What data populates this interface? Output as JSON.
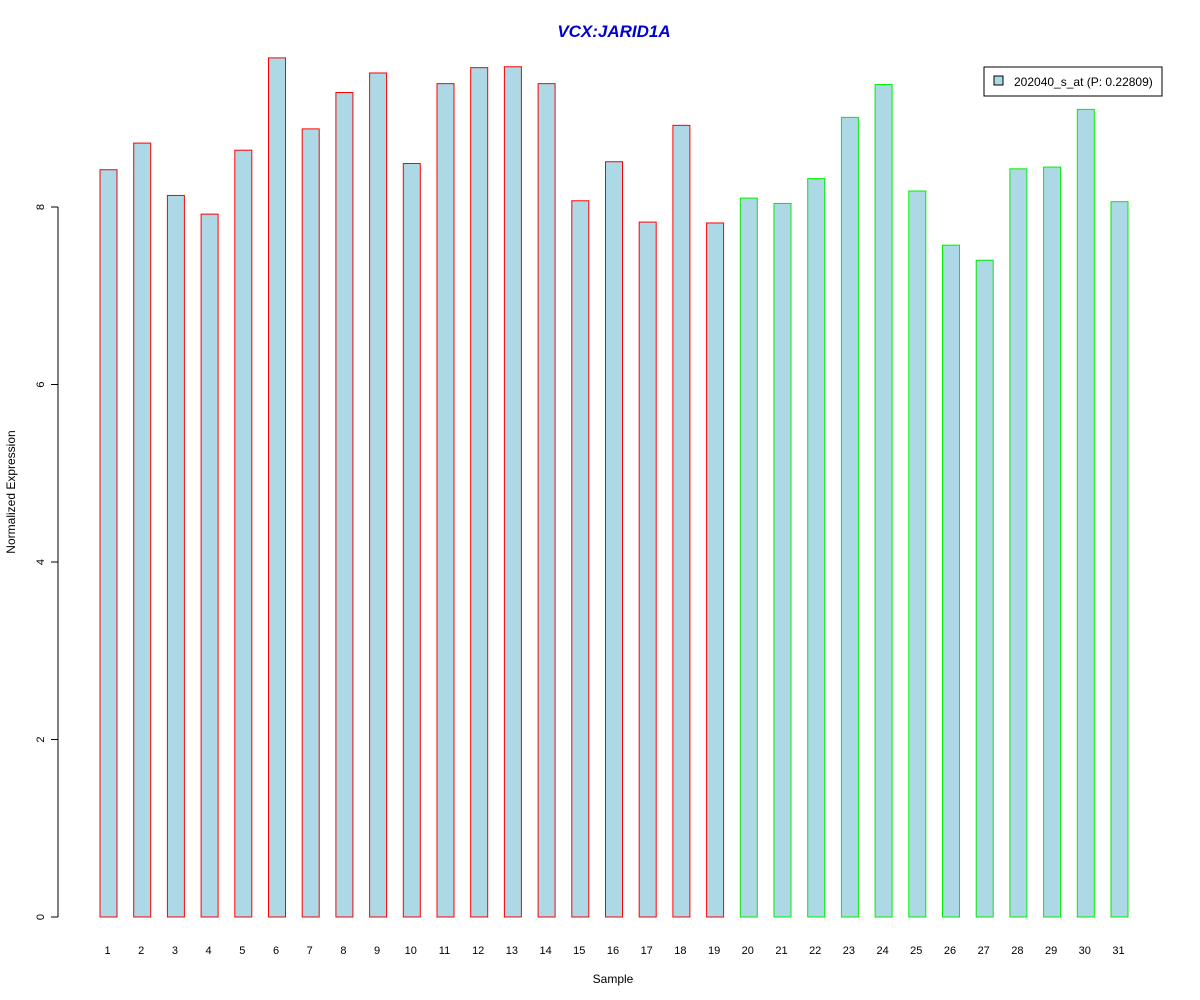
{
  "chart_data": {
    "type": "bar",
    "title": "VCX:JARID1A",
    "xlabel": "Sample",
    "ylabel": "Normalized Expression",
    "ylim": [
      0,
      10
    ],
    "yticks": [
      0,
      2,
      4,
      6,
      8
    ],
    "categories": [
      "1",
      "2",
      "3",
      "4",
      "5",
      "6",
      "7",
      "8",
      "9",
      "10",
      "11",
      "12",
      "13",
      "14",
      "15",
      "16",
      "17",
      "18",
      "19",
      "20",
      "21",
      "22",
      "23",
      "24",
      "25",
      "26",
      "27",
      "28",
      "29",
      "30",
      "31"
    ],
    "series": [
      {
        "name": "202040_s_at (P: 0.22809)",
        "fill": "#add8e6",
        "values": [
          8.42,
          8.72,
          8.13,
          7.92,
          8.64,
          9.68,
          8.88,
          9.29,
          9.51,
          8.49,
          9.39,
          9.57,
          9.58,
          9.39,
          8.07,
          8.51,
          7.83,
          8.92,
          7.82,
          8.1,
          8.04,
          8.32,
          9.01,
          9.38,
          8.18,
          7.57,
          7.4,
          8.43,
          8.45,
          9.1,
          8.06
        ]
      }
    ],
    "groups": [
      {
        "range": [
          1,
          19
        ],
        "border_color": "#ff0000"
      },
      {
        "range": [
          20,
          31
        ],
        "border_color": "#00ee00"
      }
    ],
    "legend_position": "top-right",
    "grid": false
  },
  "colors": {
    "title": "#0000cc",
    "axis": "#000000",
    "bar_fill": "#add8e6"
  }
}
